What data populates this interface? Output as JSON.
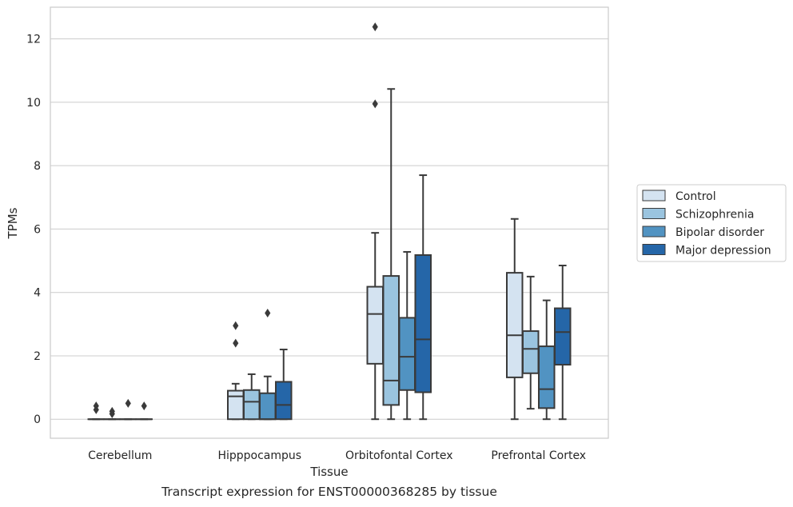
{
  "caption": "Transcript expression for ENST00000368285 by tissue",
  "chart_data": {
    "type": "box",
    "xlabel": "Tissue",
    "ylabel": "TPMs",
    "ylim": [
      -0.6,
      13.0
    ],
    "yticks": [
      0,
      2,
      4,
      6,
      8,
      10,
      12
    ],
    "grid": "horizontal",
    "legend_position": "right-center outside plot",
    "categories": [
      "Cerebellum",
      "Hipppocampus",
      "Orbitofontal Cortex",
      "Prefrontal Cortex"
    ],
    "series": [
      {
        "name": "Control",
        "color": "#d4e3f1",
        "boxes": [
          {
            "min": 0,
            "q1": 0,
            "median": 0,
            "q3": 0,
            "max": 0,
            "outliers": [
              0.3,
              0.42
            ]
          },
          {
            "min": 0,
            "q1": 0,
            "median": 0.72,
            "q3": 0.9,
            "max": 1.12,
            "outliers": [
              2.4,
              2.95
            ]
          },
          {
            "min": 0,
            "q1": 1.75,
            "median": 3.32,
            "q3": 4.18,
            "max": 5.88,
            "outliers": [
              9.95,
              12.38
            ]
          },
          {
            "min": 0,
            "q1": 1.32,
            "median": 2.65,
            "q3": 4.62,
            "max": 6.32,
            "outliers": []
          }
        ]
      },
      {
        "name": "Schizophrenia",
        "color": "#9ac4df",
        "boxes": [
          {
            "min": 0,
            "q1": 0,
            "median": 0,
            "q3": 0,
            "max": 0,
            "outliers": [
              0.17,
              0.25
            ]
          },
          {
            "min": 0,
            "q1": 0,
            "median": 0.55,
            "q3": 0.92,
            "max": 1.42,
            "outliers": []
          },
          {
            "min": 0,
            "q1": 0.45,
            "median": 1.22,
            "q3": 4.52,
            "max": 10.42,
            "outliers": []
          },
          {
            "min": 0.33,
            "q1": 1.45,
            "median": 2.22,
            "q3": 2.78,
            "max": 4.5,
            "outliers": []
          }
        ]
      },
      {
        "name": "Bipolar disorder",
        "color": "#5193c2",
        "boxes": [
          {
            "min": 0,
            "q1": 0,
            "median": 0,
            "q3": 0,
            "max": 0,
            "outliers": [
              0.5
            ]
          },
          {
            "min": 0,
            "q1": 0,
            "median": 0,
            "q3": 0.82,
            "max": 1.35,
            "outliers": [
              3.35
            ]
          },
          {
            "min": 0,
            "q1": 0.92,
            "median": 1.97,
            "q3": 3.2,
            "max": 5.28,
            "outliers": []
          },
          {
            "min": 0,
            "q1": 0.35,
            "median": 0.95,
            "q3": 2.3,
            "max": 3.75,
            "outliers": []
          }
        ]
      },
      {
        "name": "Major depression",
        "color": "#2566a8",
        "boxes": [
          {
            "min": 0,
            "q1": 0,
            "median": 0,
            "q3": 0,
            "max": 0,
            "outliers": [
              0.42
            ]
          },
          {
            "min": 0,
            "q1": 0,
            "median": 0.45,
            "q3": 1.18,
            "max": 2.2,
            "outliers": []
          },
          {
            "min": 0,
            "q1": 0.85,
            "median": 2.52,
            "q3": 5.18,
            "max": 7.7,
            "outliers": []
          },
          {
            "min": 0,
            "q1": 1.72,
            "median": 2.75,
            "q3": 3.5,
            "max": 4.85,
            "outliers": []
          }
        ]
      }
    ]
  }
}
